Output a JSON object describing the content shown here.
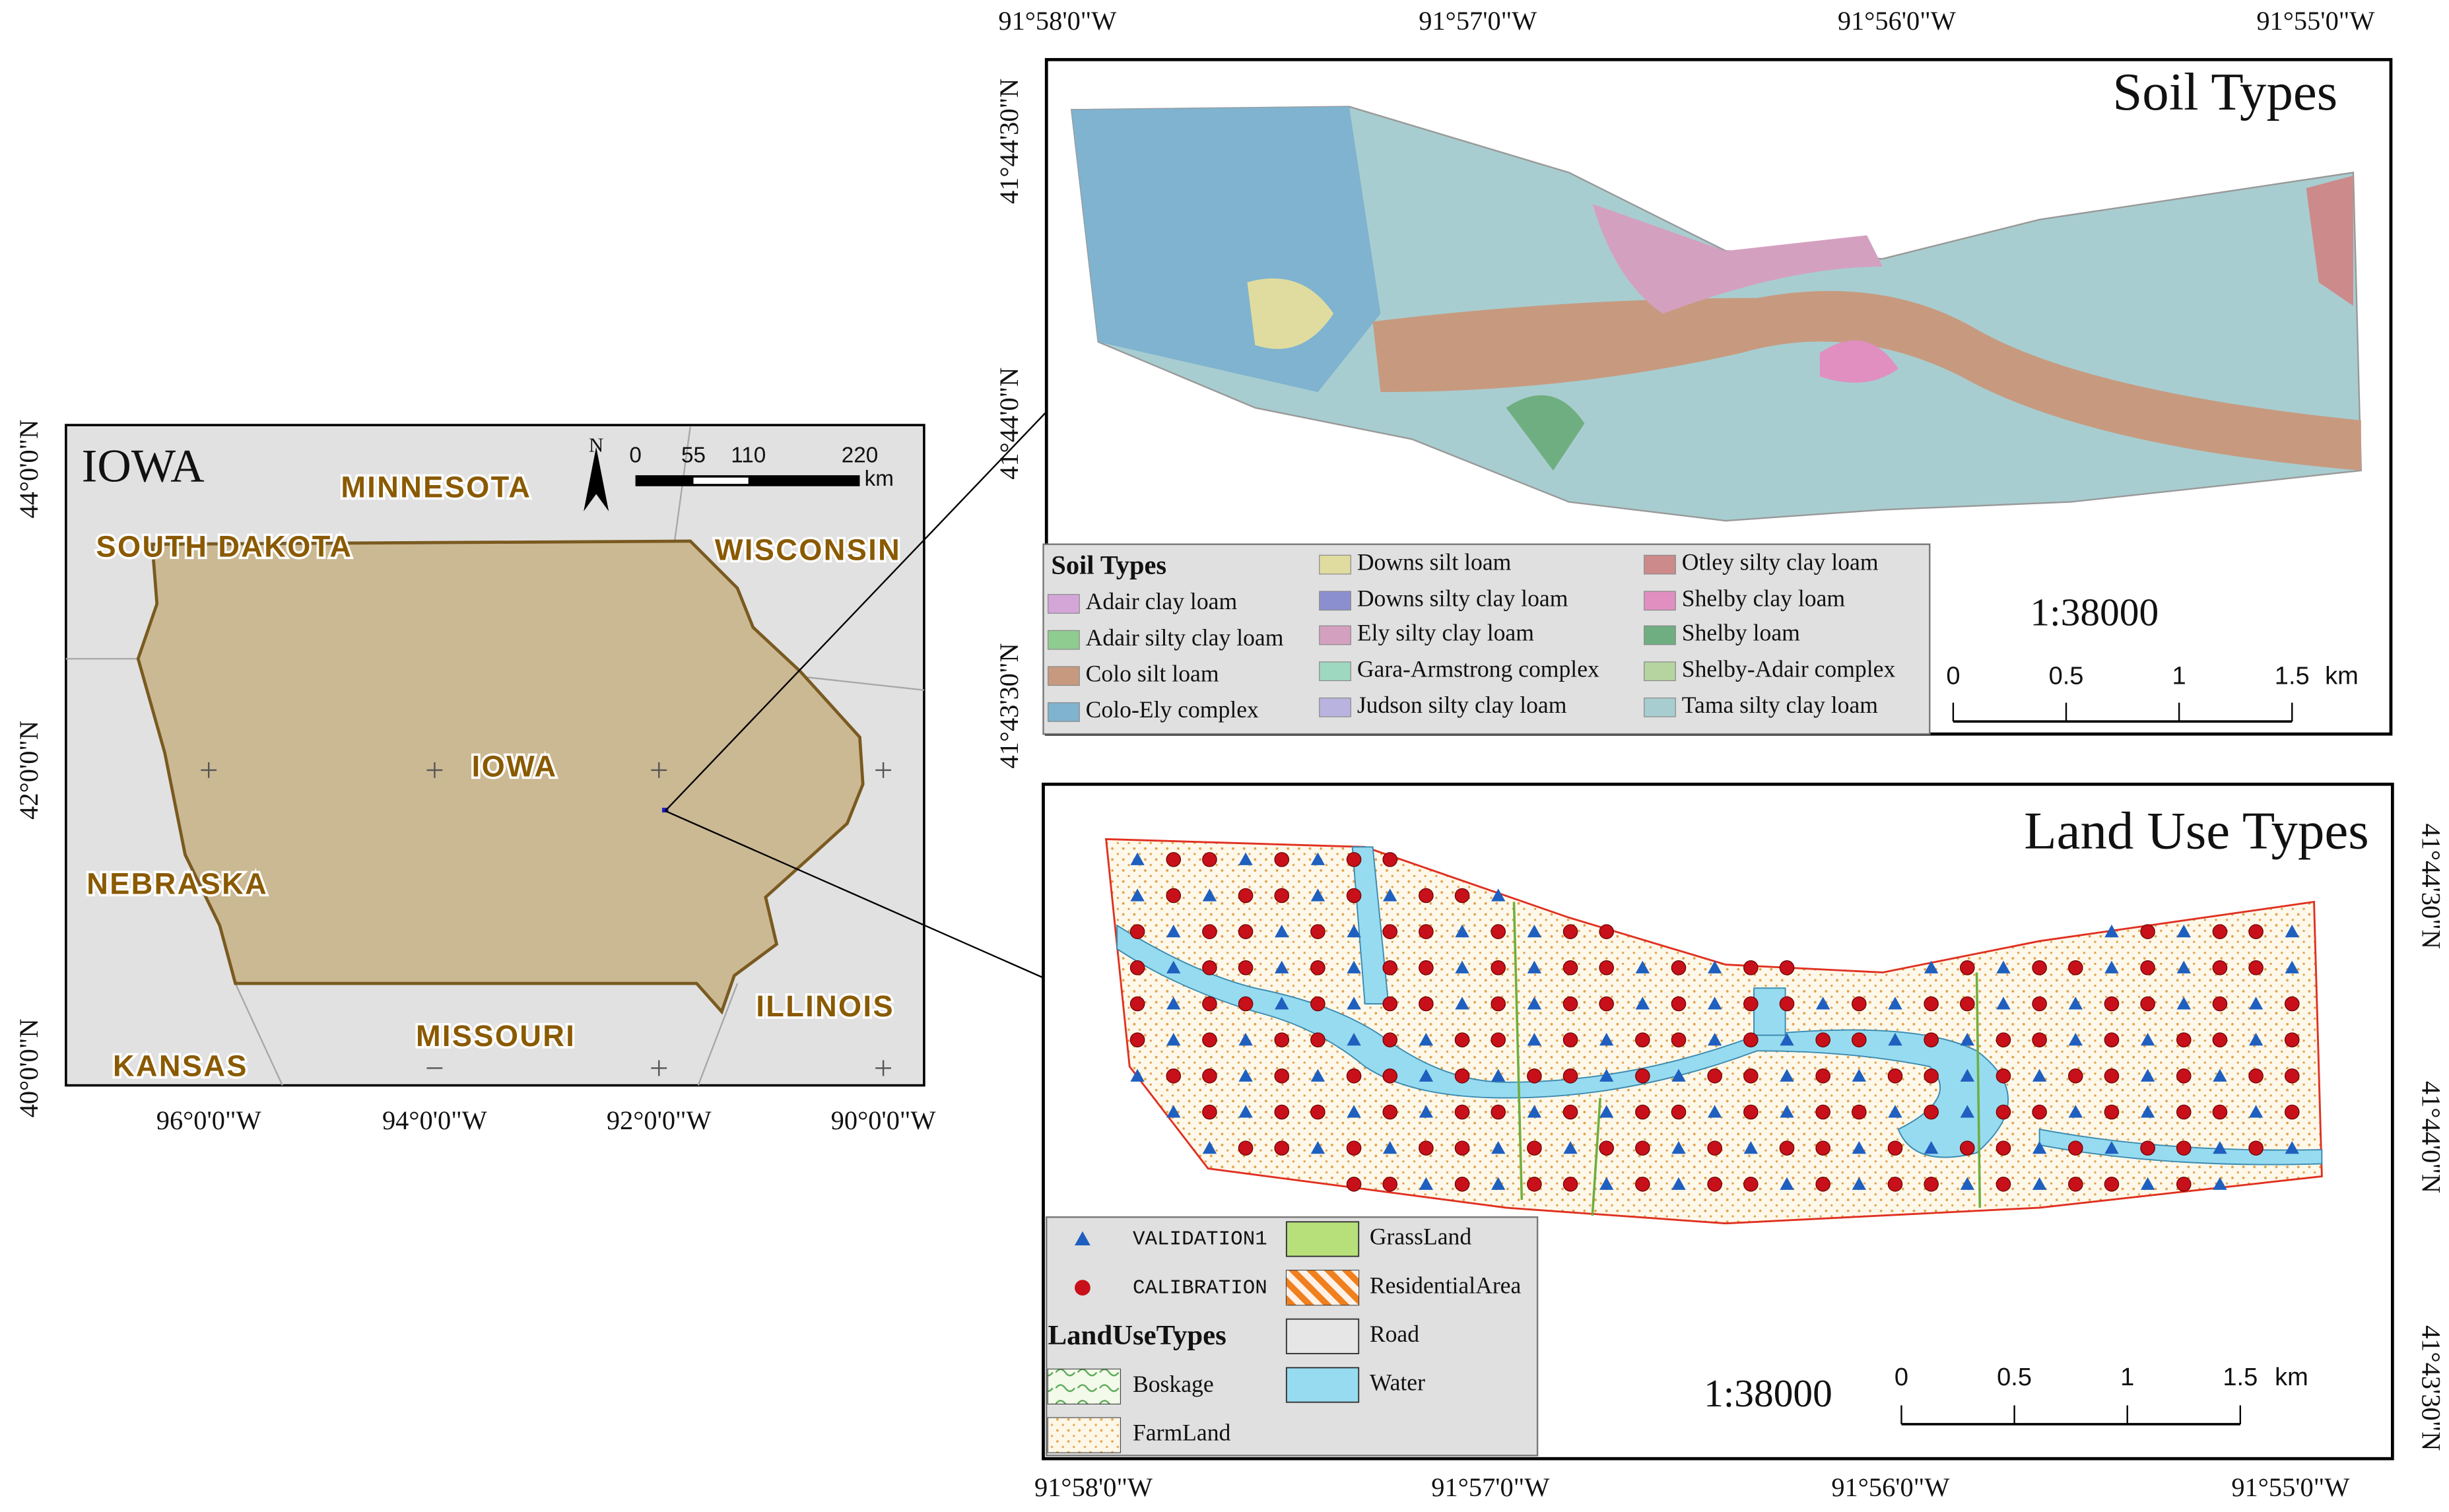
{
  "iowa_map": {
    "title": "IOWA",
    "states": [
      "MINNESOTA",
      "SOUTH DAKOTA",
      "WISCONSIN",
      "IOWA",
      "NEBRASKA",
      "ILLINOIS",
      "MISSOURI",
      "KANSAS"
    ],
    "north": "N",
    "scale_ticks": [
      "0",
      "55",
      "110",
      "220"
    ],
    "scale_unit": "km",
    "x_labels": [
      "96°0'0\"W",
      "94°0'0\"W",
      "92°0'0\"W",
      "90°0'0\"W"
    ],
    "y_labels": [
      "44°0'0\"N",
      "42°0'0\"N",
      "40°0'0\"N"
    ]
  },
  "soil_map": {
    "title": "Soil Types",
    "x_labels": [
      "91°58'0\"W",
      "91°57'0\"W",
      "91°56'0\"W",
      "91°55'0\"W"
    ],
    "y_labels": [
      "41°44'30\"N",
      "41°44'0\"N",
      "41°43'30\"N"
    ],
    "scale_ratio": "1:38000",
    "scale_ticks": [
      "0",
      "0.5",
      "1",
      "1.5"
    ],
    "scale_unit": "km",
    "legend": {
      "title": "Soil Types",
      "items": [
        {
          "label": "Adair clay loam",
          "color": "#d4a6d8"
        },
        {
          "label": "Adair silty clay loam",
          "color": "#8fcc8f"
        },
        {
          "label": "Colo silt loam",
          "color": "#c79a7f"
        },
        {
          "label": "Colo-Ely complex",
          "color": "#7fb3cf"
        },
        {
          "label": "Downs silt loam",
          "color": "#e0dca0"
        },
        {
          "label": "Downs silty clay loam",
          "color": "#8b8fcf"
        },
        {
          "label": "Ely silty clay loam",
          "color": "#d4a0c0"
        },
        {
          "label": "Gara-Armstrong complex",
          "color": "#9fd8c0"
        },
        {
          "label": "Judson silty clay loam",
          "color": "#b9b3e0"
        },
        {
          "label": "Otley silty clay loam",
          "color": "#cc8a8a"
        },
        {
          "label": "Shelby clay loam",
          "color": "#e08fc0"
        },
        {
          "label": "Shelby loam",
          "color": "#6fae80"
        },
        {
          "label": "Shelby-Adair complex",
          "color": "#b5d4a0"
        },
        {
          "label": "Tama silty clay loam",
          "color": "#a8cdd0"
        }
      ]
    }
  },
  "landuse_map": {
    "title": "Land Use Types",
    "x_labels": [
      "91°58'0\"W",
      "91°57'0\"W",
      "91°56'0\"W",
      "91°55'0\"W"
    ],
    "y_labels": [
      "41°44'30\"N",
      "41°44'0\"N",
      "41°43'30\"N"
    ],
    "scale_ratio": "1:38000",
    "scale_ticks": [
      "0",
      "0.5",
      "1",
      "1.5"
    ],
    "scale_unit": "km",
    "legend": {
      "points": [
        {
          "label": "VALIDATION1",
          "color": "#1f5fbf"
        },
        {
          "label": "CALIBRATION",
          "color": "#c8101a"
        }
      ],
      "title": "LandUseTypes",
      "items": [
        {
          "label": "Boskage",
          "color": "#e8f5d8"
        },
        {
          "label": "FarmLand",
          "color": "#fbe9c8"
        },
        {
          "label": "GrassLand",
          "color": "#b8e07a"
        },
        {
          "label": "ResidentialArea",
          "color": "#f07f1e"
        },
        {
          "label": "Road",
          "color": "#e6e6e6"
        },
        {
          "label": "Water",
          "color": "#97dbf0"
        }
      ]
    }
  }
}
